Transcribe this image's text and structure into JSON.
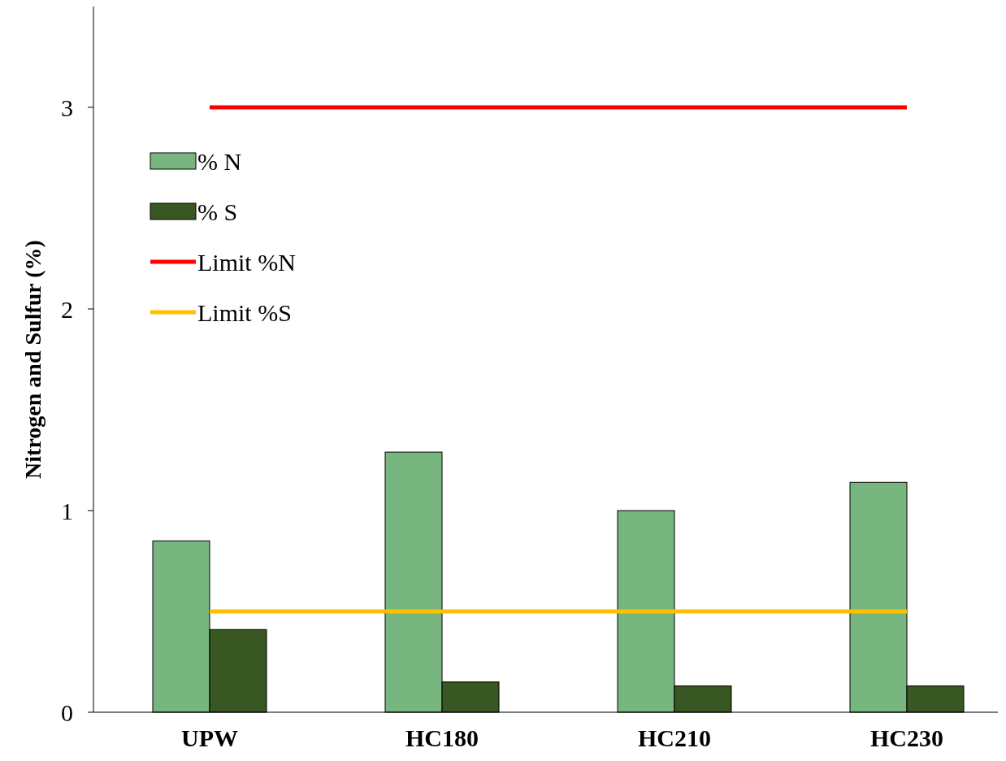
{
  "chart_data": {
    "type": "bar",
    "ylabel": "Nitrogen and Sulfur (%)",
    "categories": [
      "UPW",
      "HC180",
      "HC210",
      "HC230"
    ],
    "series": [
      {
        "name": "% N",
        "color": "#77b77f",
        "values": [
          0.85,
          1.29,
          1.0,
          1.14
        ]
      },
      {
        "name": "% S",
        "color": "#385723",
        "values": [
          0.41,
          0.15,
          0.13,
          0.13
        ]
      },
      {
        "name": "Limit %N",
        "type": "line",
        "color": "#ff0000",
        "values": [
          3,
          3,
          3,
          3
        ]
      },
      {
        "name": "Limit %S",
        "type": "line",
        "color": "#ffc000",
        "values": [
          0.5,
          0.5,
          0.5,
          0.5
        ]
      }
    ],
    "ylim": [
      0,
      3.5
    ],
    "yticks": [
      0,
      1,
      2,
      3
    ],
    "legend": "top left",
    "marker": "none",
    "line_style": "solid"
  }
}
